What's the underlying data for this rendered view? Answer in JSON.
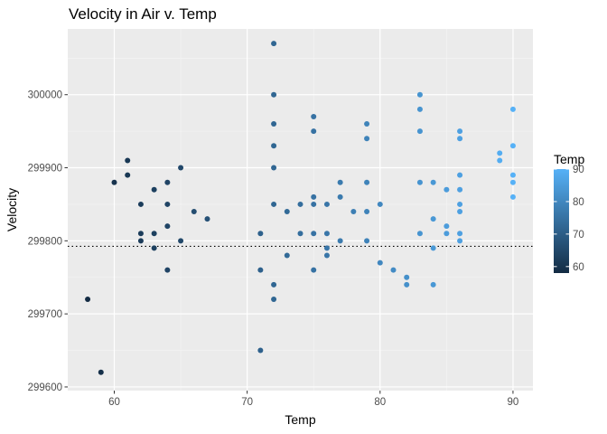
{
  "chart_data": {
    "type": "scatter",
    "title": "Velocity in Air v. Temp",
    "xlabel": "Temp",
    "ylabel": "Velocity",
    "xlim": [
      56.5,
      91.5
    ],
    "ylim": [
      299595,
      300090
    ],
    "x_ticks": [
      60,
      70,
      80,
      90
    ],
    "y_ticks": [
      299600,
      299700,
      299800,
      299900,
      300000
    ],
    "y_tick_labels": [
      "299600",
      "299700",
      "299800",
      "299900",
      "300000"
    ],
    "grid": true,
    "reference_line": {
      "y": 299792.458,
      "style": "dotted",
      "color": "#000000"
    },
    "color_scale": {
      "variable": "Temp",
      "low": 58,
      "high": 90,
      "low_color": "#132B43",
      "high_color": "#56B1F7",
      "ticks": [
        60,
        70,
        80,
        90
      ]
    },
    "legend": {
      "title": "Temp",
      "position": "right"
    },
    "points": [
      {
        "x": 58,
        "y": 299720
      },
      {
        "x": 59,
        "y": 299620
      },
      {
        "x": 60,
        "y": 299880
      },
      {
        "x": 61,
        "y": 299910
      },
      {
        "x": 61,
        "y": 299890
      },
      {
        "x": 62,
        "y": 299850
      },
      {
        "x": 62,
        "y": 299810
      },
      {
        "x": 62,
        "y": 299800
      },
      {
        "x": 63,
        "y": 299870
      },
      {
        "x": 63,
        "y": 299810
      },
      {
        "x": 63,
        "y": 299790
      },
      {
        "x": 64,
        "y": 299880
      },
      {
        "x": 64,
        "y": 299850
      },
      {
        "x": 64,
        "y": 299820
      },
      {
        "x": 64,
        "y": 299760
      },
      {
        "x": 65,
        "y": 299900
      },
      {
        "x": 65,
        "y": 299800
      },
      {
        "x": 66,
        "y": 299840
      },
      {
        "x": 67,
        "y": 299830
      },
      {
        "x": 71,
        "y": 299810
      },
      {
        "x": 71,
        "y": 299760
      },
      {
        "x": 71,
        "y": 299650
      },
      {
        "x": 72,
        "y": 300070
      },
      {
        "x": 72,
        "y": 300000
      },
      {
        "x": 72,
        "y": 299960
      },
      {
        "x": 72,
        "y": 299930
      },
      {
        "x": 72,
        "y": 299900
      },
      {
        "x": 72,
        "y": 299850
      },
      {
        "x": 72,
        "y": 299740
      },
      {
        "x": 72,
        "y": 299720
      },
      {
        "x": 73,
        "y": 299840
      },
      {
        "x": 73,
        "y": 299780
      },
      {
        "x": 74,
        "y": 299850
      },
      {
        "x": 74,
        "y": 299810
      },
      {
        "x": 75,
        "y": 299970
      },
      {
        "x": 75,
        "y": 299950
      },
      {
        "x": 75,
        "y": 299860
      },
      {
        "x": 75,
        "y": 299850
      },
      {
        "x": 75,
        "y": 299810
      },
      {
        "x": 75,
        "y": 299760
      },
      {
        "x": 76,
        "y": 299850
      },
      {
        "x": 76,
        "y": 299810
      },
      {
        "x": 76,
        "y": 299790
      },
      {
        "x": 76,
        "y": 299780
      },
      {
        "x": 77,
        "y": 299880
      },
      {
        "x": 77,
        "y": 299860
      },
      {
        "x": 77,
        "y": 299800
      },
      {
        "x": 78,
        "y": 299840
      },
      {
        "x": 79,
        "y": 299960
      },
      {
        "x": 79,
        "y": 299940
      },
      {
        "x": 79,
        "y": 299880
      },
      {
        "x": 79,
        "y": 299840
      },
      {
        "x": 79,
        "y": 299800
      },
      {
        "x": 80,
        "y": 299850
      },
      {
        "x": 80,
        "y": 299770
      },
      {
        "x": 81,
        "y": 299760
      },
      {
        "x": 82,
        "y": 299750
      },
      {
        "x": 82,
        "y": 299740
      },
      {
        "x": 83,
        "y": 300000
      },
      {
        "x": 83,
        "y": 299980
      },
      {
        "x": 83,
        "y": 299950
      },
      {
        "x": 83,
        "y": 299880
      },
      {
        "x": 83,
        "y": 299810
      },
      {
        "x": 84,
        "y": 299880
      },
      {
        "x": 84,
        "y": 299830
      },
      {
        "x": 84,
        "y": 299790
      },
      {
        "x": 84,
        "y": 299740
      },
      {
        "x": 85,
        "y": 299870
      },
      {
        "x": 85,
        "y": 299820
      },
      {
        "x": 85,
        "y": 299810
      },
      {
        "x": 86,
        "y": 299950
      },
      {
        "x": 86,
        "y": 299940
      },
      {
        "x": 86,
        "y": 299890
      },
      {
        "x": 86,
        "y": 299870
      },
      {
        "x": 86,
        "y": 299850
      },
      {
        "x": 86,
        "y": 299840
      },
      {
        "x": 86,
        "y": 299810
      },
      {
        "x": 86,
        "y": 299800
      },
      {
        "x": 89,
        "y": 299920
      },
      {
        "x": 89,
        "y": 299910
      },
      {
        "x": 90,
        "y": 299980
      },
      {
        "x": 90,
        "y": 299930
      },
      {
        "x": 90,
        "y": 299890
      },
      {
        "x": 90,
        "y": 299880
      },
      {
        "x": 90,
        "y": 299860
      }
    ]
  }
}
